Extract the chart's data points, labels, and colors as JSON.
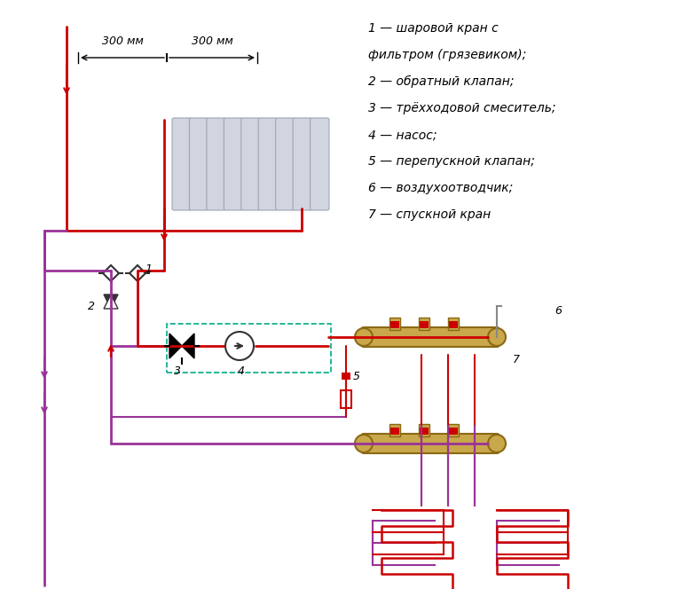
{
  "bg_color": "#ffffff",
  "hot_color": "#cc0000",
  "cold_color": "#993399",
  "return_color": "#cc0000",
  "dashed_color": "#00aa88",
  "manifold_color": "#c8a84b",
  "legend_items": [
    "1 — шаровой кран с",
    "фильтром (грязевиком);",
    "2 — обратный клапан;",
    "3 — трёхходовой смеситель;",
    "4 — насос;",
    "5 — перепускной клапан;",
    "6 — воздухоотводчик;",
    "7 — спускной кран"
  ],
  "dim_text": [
    "300 мм",
    "300 мм"
  ]
}
